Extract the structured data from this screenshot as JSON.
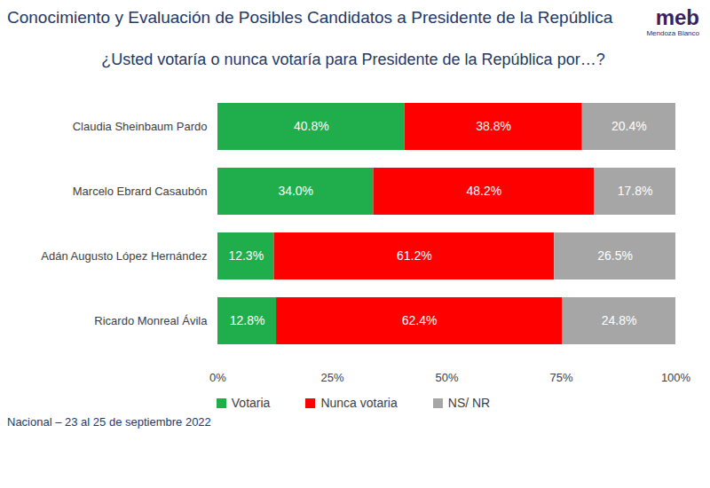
{
  "chart_data": {
    "type": "bar",
    "title": "Conocimiento y Evaluación de Posibles Candidatos a Presidente de la República",
    "subtitle": "¿Usted votaría o nunca votaría para Presidente de la República por…?",
    "source": "Nacional – 23 al 25 de septiembre 2022",
    "logo": "meb",
    "logo_subtitle": "Mendoza Blanco",
    "orientation": "horizontal",
    "stacked": true,
    "data_labels": true,
    "legend": "bottom",
    "grid": false,
    "categories": [
      "Claudia Sheinbaum Pardo",
      "Marcelo Ebrard Casaubón",
      "Adán Augusto López Hernández",
      "Ricardo Monreal Ávila"
    ],
    "series": [
      {
        "name": "Votaria",
        "color": "#1fae4b",
        "values": [
          40.8,
          34.0,
          12.3,
          12.8
        ],
        "value_labels": [
          "40.8%",
          "34.0%",
          "12.3%",
          "12.8%"
        ]
      },
      {
        "name": "Nunca votaria",
        "color": "#ff0000",
        "values": [
          38.8,
          48.2,
          61.2,
          62.4
        ],
        "value_labels": [
          "38.8%",
          "48.2%",
          "61.2%",
          "62.4%"
        ]
      },
      {
        "name": "NS/ NR",
        "color": "#a6a6a6",
        "values": [
          20.4,
          17.8,
          26.5,
          24.8
        ],
        "value_labels": [
          "20.4%",
          "17.8%",
          "26.5%",
          "24.8%"
        ]
      }
    ],
    "xlim": [
      0,
      100
    ],
    "xticks": [
      {
        "value": 0,
        "label": "0%"
      },
      {
        "value": 25,
        "label": "25%"
      },
      {
        "value": 50,
        "label": "50%"
      },
      {
        "value": 75,
        "label": "75%"
      },
      {
        "value": 100,
        "label": "100%"
      }
    ]
  }
}
